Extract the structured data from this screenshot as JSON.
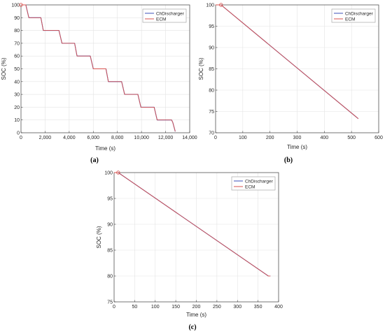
{
  "chart_data": [
    {
      "panel_label": "(a)",
      "type": "line",
      "xlabel": "Time (s)",
      "ylabel": "SOC (%)",
      "xlim": [
        0,
        14000
      ],
      "ylim": [
        0,
        100
      ],
      "xticks": [
        0,
        2000,
        4000,
        6000,
        8000,
        10000,
        12000,
        14000
      ],
      "xtick_labels": [
        "0",
        "2,000",
        "4,000",
        "6,000",
        "8,000",
        "10,000",
        "12,000",
        "14,000"
      ],
      "yticks": [
        0,
        10,
        20,
        30,
        40,
        50,
        60,
        70,
        80,
        90,
        100
      ],
      "ytick_labels": [
        "0",
        "10",
        "20",
        "30",
        "40",
        "50",
        "60",
        "70",
        "80",
        "90",
        "100"
      ],
      "grid": true,
      "legend": "top-right",
      "series": [
        {
          "name": "ChDischarger",
          "color": "#3b4fb8",
          "x": [
            0,
            400,
            650,
            1650,
            1850,
            3150,
            3400,
            4450,
            4650,
            5750,
            6000,
            7050,
            7250,
            8350,
            8600,
            9700,
            9950,
            11050,
            11300,
            12500,
            12600,
            12800
          ],
          "y": [
            100,
            100,
            90,
            90,
            80,
            80,
            70,
            70,
            60,
            60,
            50,
            50,
            40,
            40,
            30,
            30,
            20,
            20,
            10,
            10,
            8,
            1
          ]
        },
        {
          "name": "ECM",
          "color": "#d9534f",
          "x": [
            0,
            400,
            650,
            1650,
            1850,
            3150,
            3400,
            4450,
            4650,
            5750,
            6000,
            7050,
            7250,
            8350,
            8600,
            9700,
            9950,
            11050,
            11300,
            12500,
            12600,
            12800
          ],
          "y": [
            100,
            100,
            90,
            90,
            80,
            80,
            70,
            70,
            60,
            60,
            50,
            50,
            40,
            40,
            30,
            30,
            20,
            20,
            10,
            10,
            8,
            1
          ]
        }
      ],
      "marker": {
        "x": 0,
        "y": 100
      }
    },
    {
      "panel_label": "(b)",
      "type": "line",
      "xlabel": "Time (s)",
      "ylabel": "SOC (%)",
      "xlim": [
        0,
        600
      ],
      "ylim": [
        70,
        100
      ],
      "xticks": [
        0,
        100,
        200,
        300,
        400,
        500,
        600
      ],
      "xtick_labels": [
        "0",
        "100",
        "200",
        "300",
        "400",
        "500",
        "600"
      ],
      "yticks": [
        70,
        75,
        80,
        85,
        90,
        95,
        100
      ],
      "ytick_labels": [
        "70",
        "75",
        "80",
        "85",
        "90",
        "95",
        "100"
      ],
      "grid": true,
      "legend": "top-right",
      "series": [
        {
          "name": "ChDischarger",
          "color": "#3b4fb8",
          "x": [
            0,
            20,
            525
          ],
          "y": [
            100,
            100,
            73.3
          ]
        },
        {
          "name": "ECM",
          "color": "#d9534f",
          "x": [
            0,
            20,
            525
          ],
          "y": [
            100,
            100,
            73.3
          ]
        }
      ],
      "marker": {
        "x": 20,
        "y": 100
      }
    },
    {
      "panel_label": "(c)",
      "type": "line",
      "xlabel": "Time (s)",
      "ylabel": "SOC (%)",
      "xlim": [
        0,
        400
      ],
      "ylim": [
        75,
        100
      ],
      "xticks": [
        0,
        50,
        100,
        150,
        200,
        250,
        300,
        350,
        400
      ],
      "xtick_labels": [
        "0",
        "50",
        "100",
        "150",
        "200",
        "250",
        "300",
        "350",
        "400"
      ],
      "yticks": [
        75,
        80,
        85,
        90,
        95,
        100
      ],
      "ytick_labels": [
        "75",
        "80",
        "85",
        "90",
        "95",
        "100"
      ],
      "grid": true,
      "legend": "top-right",
      "series": [
        {
          "name": "ChDischarger",
          "color": "#3b4fb8",
          "x": [
            0,
            10,
            375,
            380
          ],
          "y": [
            100,
            100,
            80,
            80
          ]
        },
        {
          "name": "ECM",
          "color": "#d9534f",
          "x": [
            0,
            10,
            375,
            380
          ],
          "y": [
            100,
            100,
            80,
            80
          ]
        }
      ],
      "marker": {
        "x": 10,
        "y": 100
      }
    }
  ]
}
